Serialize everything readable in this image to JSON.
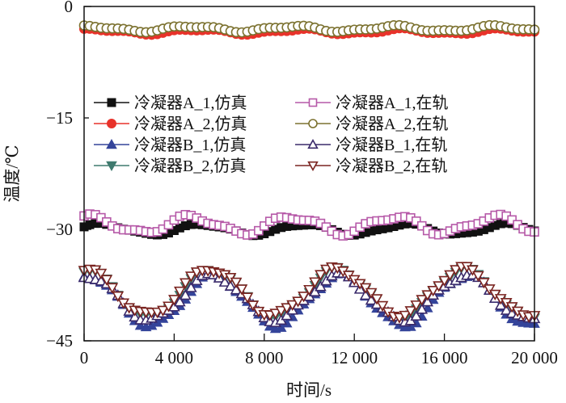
{
  "chart_data": {
    "type": "line",
    "title": "",
    "xlabel": "时间/s",
    "ylabel": "温度/℃",
    "xlim": [
      0,
      20000
    ],
    "ylim": [
      -45,
      0
    ],
    "xticks": [
      0,
      4000,
      8000,
      12000,
      16000,
      20000
    ],
    "xtick_labels": [
      "0",
      "4 000",
      "8 000",
      "12 000",
      "16 000",
      "20 000"
    ],
    "yticks": [
      0,
      -15,
      -30,
      -45
    ],
    "ytick_labels": [
      "0",
      "−15",
      "−30",
      "−45"
    ],
    "grid": false,
    "legend": {
      "placement": "center-top",
      "columns": 2
    },
    "sample_step": 250,
    "series": [
      {
        "name": "冷凝器A_1,仿真",
        "color": "#111111",
        "marker": "square-filled",
        "base": -30.0,
        "amp": 0.7,
        "period": 4500,
        "phase": 0.5
      },
      {
        "name": "冷凝器A_2,仿真",
        "color": "#e8322a",
        "marker": "circle-filled",
        "base": -3.4,
        "amp": 0.3,
        "period": 4500,
        "phase": 0.8
      },
      {
        "name": "冷凝器B_1,仿真",
        "color": "#34449a",
        "marker": "triangle-up-filled",
        "base": -39.6,
        "amp": 3.4,
        "period": 5600,
        "phase": 1.4
      },
      {
        "name": "冷凝器B_2,仿真",
        "color": "#3f7a6e",
        "marker": "triangle-down-filled",
        "base": -38.6,
        "amp": 3.2,
        "period": 5600,
        "phase": 1.5
      },
      {
        "name": "冷凝器A_1,在轨",
        "color": "#b659a8",
        "marker": "square-open",
        "base": -29.4,
        "amp": 1.1,
        "period": 4500,
        "phase": 1.2
      },
      {
        "name": "冷凝器A_2,在轨",
        "color": "#7c7230",
        "marker": "circle-open",
        "base": -3.0,
        "amp": 0.35,
        "period": 4500,
        "phase": 1.2
      },
      {
        "name": "冷凝器B_1,在轨",
        "color": "#3a2a6a",
        "marker": "triangle-up-open",
        "base": -39.2,
        "amp": 3.0,
        "period": 5600,
        "phase": 1.45
      },
      {
        "name": "冷凝器B_2,在轨",
        "color": "#7a2420",
        "marker": "triangle-down-open",
        "base": -38.4,
        "amp": 3.1,
        "period": 5600,
        "phase": 1.55
      }
    ]
  }
}
